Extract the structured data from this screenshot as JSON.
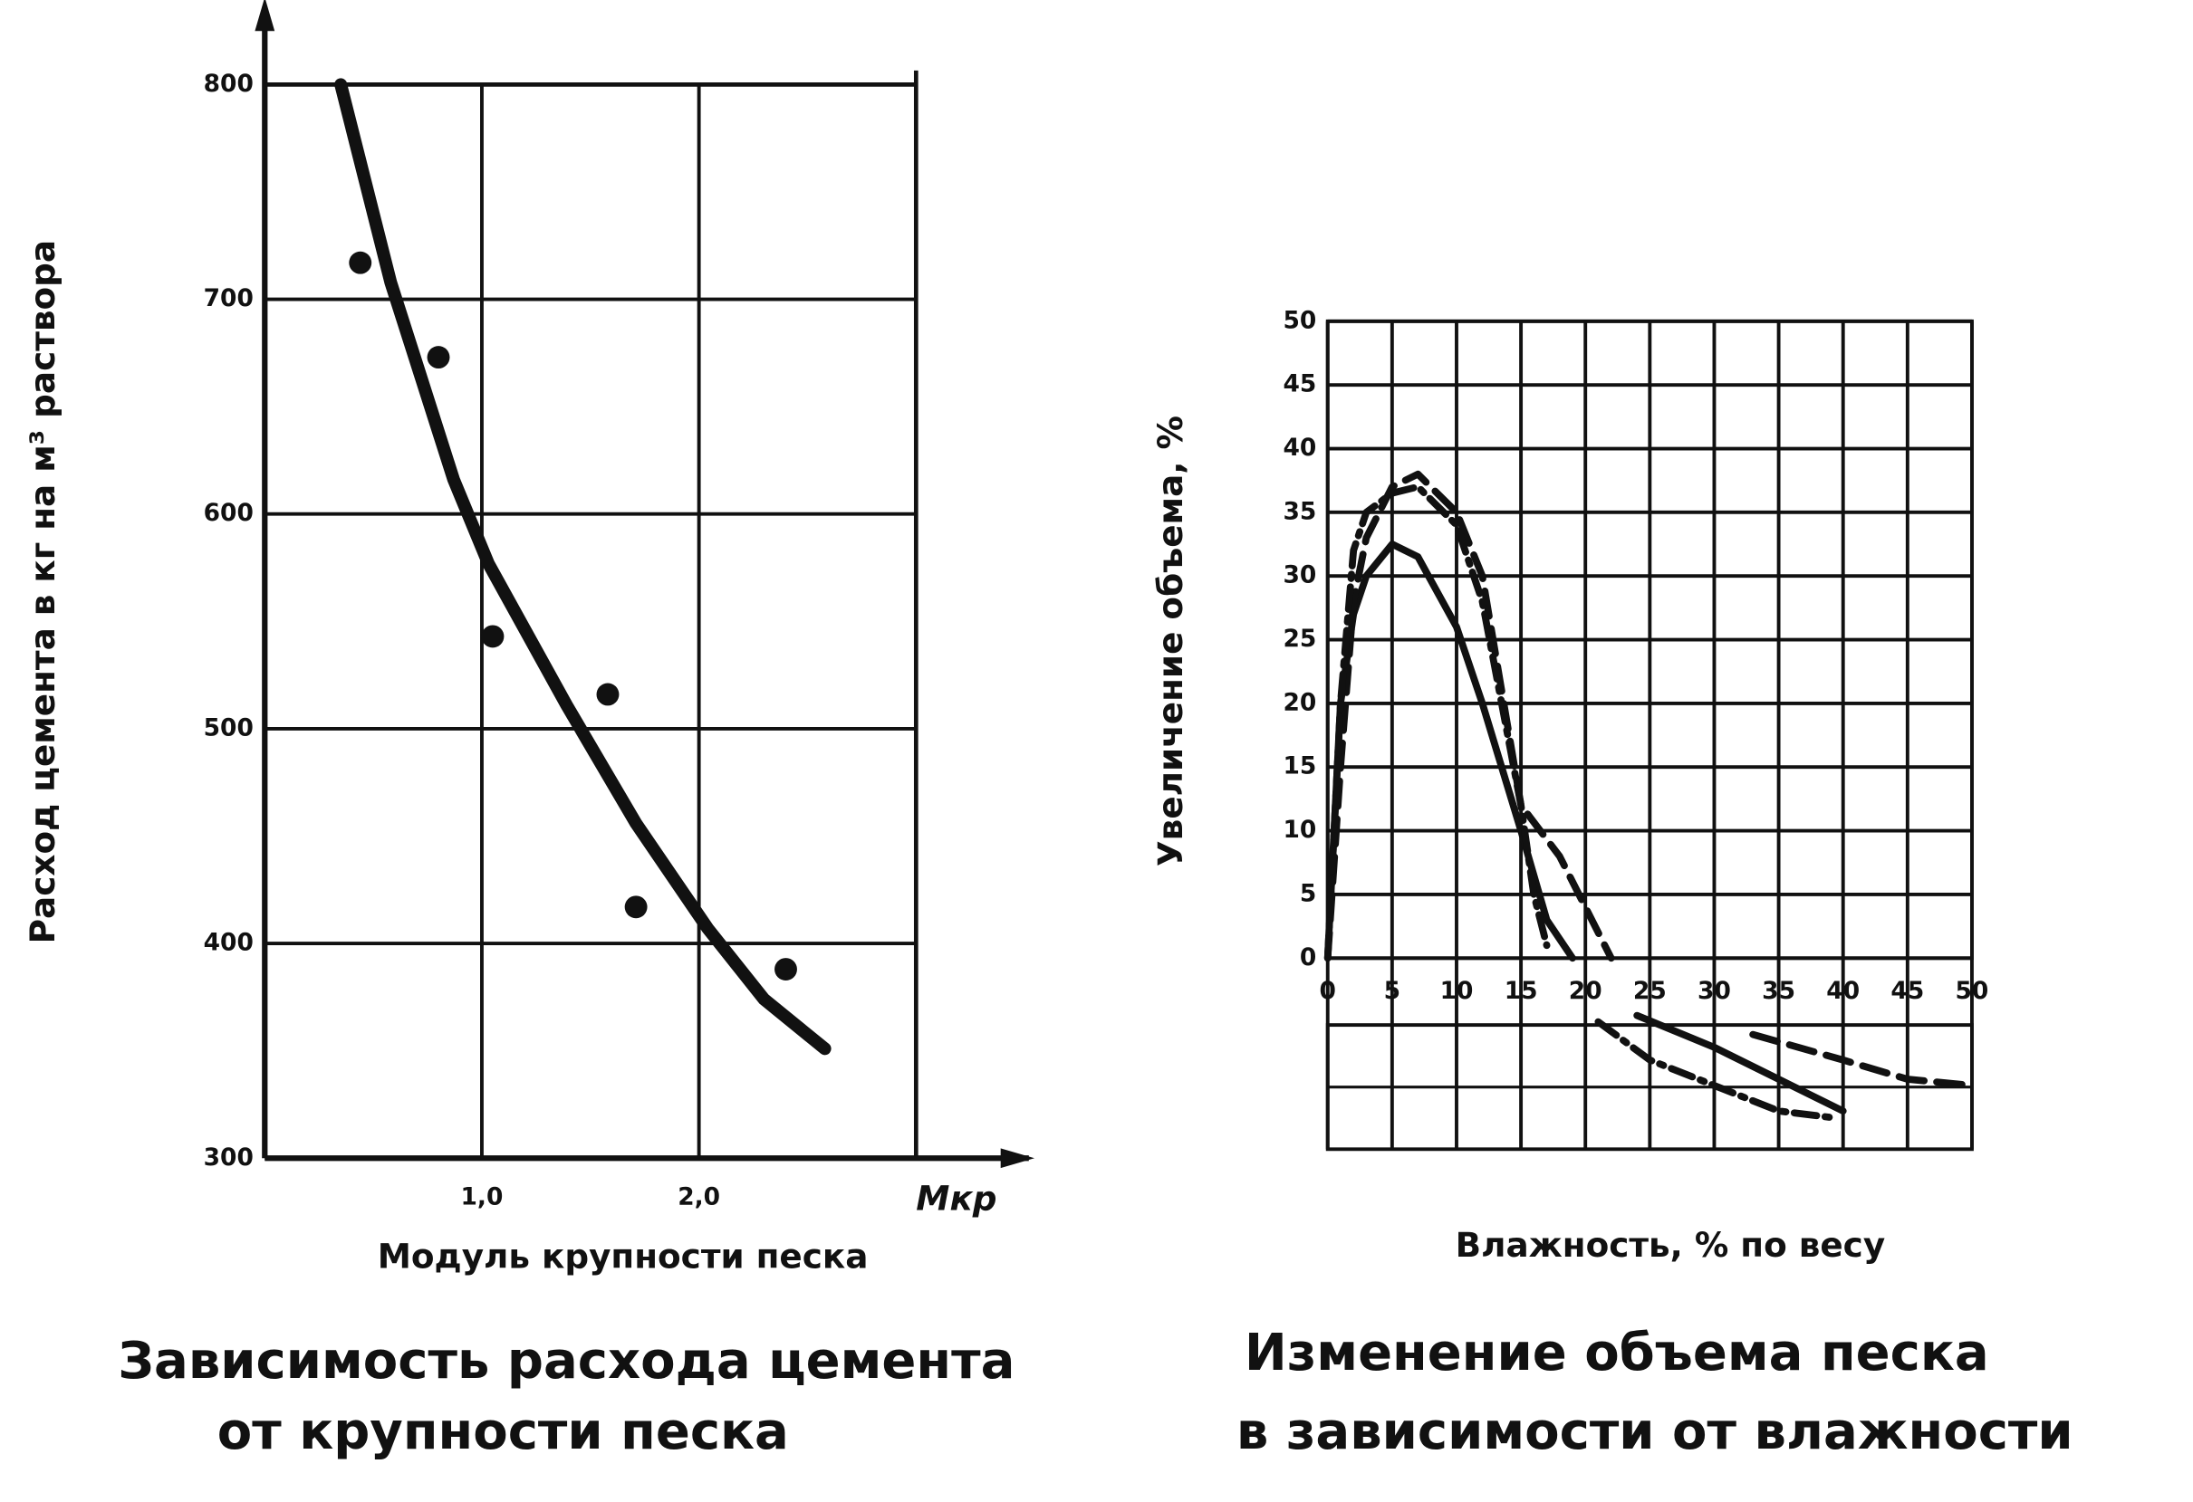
{
  "chart_data": [
    {
      "type": "scatter",
      "title": [
        "Зависимость расхода цемента",
        "от крупности песка"
      ],
      "x_label": "Модуль крупности песка",
      "x_unit": "Мкр",
      "y_label": "Расход цемента в кг на м³ раствора",
      "xlim": [
        0,
        3
      ],
      "ylim": [
        300,
        800
      ],
      "xticks": [
        {
          "value": 1,
          "label": "1,0"
        },
        {
          "value": 2,
          "label": "2,0"
        }
      ],
      "yticks": [
        300,
        400,
        500,
        600,
        700,
        800
      ],
      "grid": true,
      "series": [
        {
          "mode": "markers",
          "color": "#111111",
          "x": [
            0.44,
            0.8,
            1.05,
            1.58,
            1.71,
            2.4
          ],
          "values": [
            717,
            673,
            543,
            516,
            417,
            388
          ]
        },
        {
          "mode": "line",
          "color": "#111111",
          "x": [
            0.35,
            0.58,
            0.87,
            1.03,
            1.39,
            1.71,
            2.04,
            2.3,
            2.58
          ],
          "values": [
            800,
            708,
            616,
            577,
            511,
            456,
            407,
            374,
            351
          ]
        }
      ]
    },
    {
      "type": "line",
      "title": [
        "Изменение объема песка",
        "в зависимости от влажности"
      ],
      "x_label": "Влажность, % по весу",
      "y_label": "Увеличение объема, %",
      "xlim": [
        0,
        50
      ],
      "ylim": [
        -15,
        50
      ],
      "xticks": [
        0,
        5,
        10,
        15,
        20,
        25,
        30,
        35,
        40,
        45,
        50
      ],
      "yticks": [
        0,
        5,
        10,
        15,
        20,
        25,
        30,
        35,
        40,
        45,
        50
      ],
      "grid": true,
      "series": [
        {
          "dash": "solid",
          "color": "#111111",
          "x": [
            0,
            1,
            2,
            3,
            5,
            7,
            10,
            12,
            15,
            17,
            19,
            22,
            24,
            30,
            35,
            40
          ],
          "values": [
            0,
            20,
            27,
            30,
            32.5,
            31.5,
            26,
            20,
            10,
            3,
            0,
            null,
            -4.5,
            -7,
            -9.5,
            -12
          ]
        },
        {
          "dash": "dash",
          "color": "#111111",
          "x": [
            0,
            1,
            2,
            3,
            5,
            7,
            10,
            12,
            15,
            18,
            22,
            26,
            33,
            40,
            45,
            50
          ],
          "values": [
            0,
            15,
            28,
            33,
            37,
            38,
            35,
            30,
            12,
            8,
            0,
            null,
            -6,
            -8,
            -9.5,
            -10
          ]
        },
        {
          "dash": "dashdot",
          "color": "#111111",
          "x": [
            0,
            1,
            2,
            3,
            5,
            7,
            10,
            12,
            15,
            16,
            17,
            19,
            21,
            25,
            30,
            35,
            39
          ],
          "values": [
            0,
            20,
            32,
            35,
            36.5,
            37,
            34,
            28,
            12,
            5,
            1,
            null,
            -5,
            -8,
            -10,
            -12,
            -12.5
          ]
        }
      ]
    }
  ]
}
